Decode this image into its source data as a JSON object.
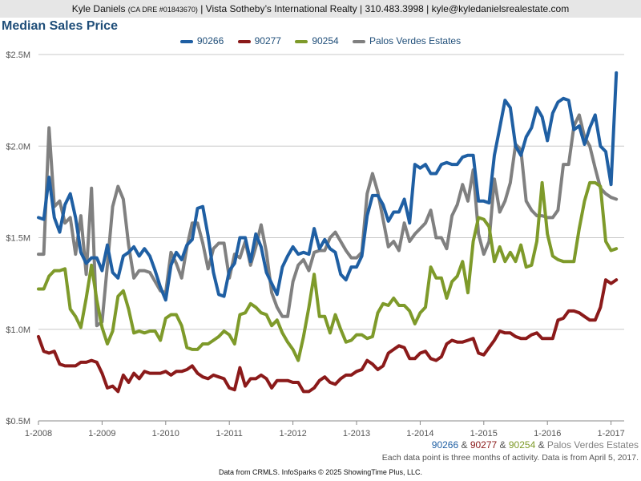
{
  "header": {
    "agent": "Kyle Daniels",
    "license": "(CA DRE #01843670)",
    "rest": "| Vista Sotheby’s International Realty | 310.483.3998 | kyle@kyledanielsrealestate.com"
  },
  "colors": {
    "90266": "#1f5fa3",
    "90277": "#8b1a1a",
    "90254": "#7e9a2a",
    "pve": "#808080"
  },
  "footer": {
    "zip_line": {
      "s1": "90266",
      "amp1": " & ",
      "s2": "90277",
      "amp2": " & ",
      "s3": "90254",
      "amp3": " & ",
      "s4": "Palos Verdes Estates"
    },
    "note": "Each data point is three months of activity. Data is from April 5, 2017.",
    "source": "Data from CRMLS. InfoSparks © 2025 ShowingTime Plus, LLC."
  },
  "chart_data": {
    "type": "line",
    "title": "Median Sales Price",
    "x_ticks": [
      "1-2008",
      "1-2009",
      "1-2010",
      "1-2011",
      "1-2012",
      "1-2013",
      "1-2014",
      "1-2015",
      "1-2016",
      "1-2017"
    ],
    "y_ticks": [
      "$0.5M",
      "$1.0M",
      "$1.5M",
      "$2.0M",
      "$2.5M"
    ],
    "ylim": [
      0.5,
      2.5
    ],
    "x_range": [
      "2008-01",
      "2017-03"
    ],
    "grid": true,
    "legend_position": "top-center",
    "series": [
      {
        "name": "90266",
        "color": "#1f5fa3",
        "values": [
          1.61,
          1.6,
          1.83,
          1.61,
          1.53,
          1.68,
          1.74,
          1.61,
          1.42,
          1.36,
          1.39,
          1.39,
          1.32,
          1.46,
          1.31,
          1.28,
          1.4,
          1.42,
          1.45,
          1.4,
          1.44,
          1.4,
          1.32,
          1.23,
          1.16,
          1.35,
          1.42,
          1.38,
          1.46,
          1.49,
          1.66,
          1.67,
          1.51,
          1.31,
          1.19,
          1.18,
          1.32,
          1.36,
          1.5,
          1.5,
          1.37,
          1.52,
          1.45,
          1.31,
          1.25,
          1.19,
          1.34,
          1.4,
          1.45,
          1.41,
          1.42,
          1.41,
          1.55,
          1.44,
          1.49,
          1.44,
          1.42,
          1.3,
          1.27,
          1.34,
          1.34,
          1.4,
          1.62,
          1.73,
          1.73,
          1.68,
          1.59,
          1.64,
          1.64,
          1.71,
          1.58,
          1.9,
          1.88,
          1.9,
          1.85,
          1.85,
          1.9,
          1.91,
          1.9,
          1.9,
          1.94,
          1.95,
          1.95,
          1.7,
          1.7,
          1.69,
          1.95,
          2.1,
          2.25,
          2.21,
          2.0,
          1.95,
          2.05,
          2.1,
          2.21,
          2.16,
          2.03,
          2.18,
          2.24,
          2.26,
          2.25,
          2.09,
          2.11,
          2.01,
          2.1,
          2.17,
          2.0,
          1.97,
          1.79,
          2.4
        ]
      },
      {
        "name": "90277",
        "color": "#8b1a1a",
        "values": [
          0.96,
          0.88,
          0.87,
          0.88,
          0.81,
          0.8,
          0.8,
          0.8,
          0.82,
          0.82,
          0.83,
          0.82,
          0.76,
          0.68,
          0.69,
          0.66,
          0.75,
          0.71,
          0.76,
          0.73,
          0.77,
          0.76,
          0.76,
          0.76,
          0.77,
          0.75,
          0.77,
          0.77,
          0.78,
          0.8,
          0.76,
          0.74,
          0.73,
          0.75,
          0.74,
          0.73,
          0.68,
          0.67,
          0.79,
          0.69,
          0.73,
          0.73,
          0.75,
          0.73,
          0.68,
          0.72,
          0.72,
          0.72,
          0.71,
          0.71,
          0.66,
          0.66,
          0.68,
          0.72,
          0.74,
          0.71,
          0.7,
          0.73,
          0.75,
          0.75,
          0.77,
          0.78,
          0.83,
          0.81,
          0.78,
          0.8,
          0.87,
          0.89,
          0.91,
          0.9,
          0.84,
          0.84,
          0.87,
          0.88,
          0.84,
          0.83,
          0.85,
          0.92,
          0.94,
          0.93,
          0.93,
          0.94,
          0.95,
          0.87,
          0.86,
          0.9,
          0.94,
          0.99,
          0.98,
          0.98,
          0.96,
          0.95,
          0.95,
          0.97,
          0.98,
          0.95,
          0.95,
          0.95,
          1.05,
          1.06,
          1.1,
          1.1,
          1.09,
          1.07,
          1.05,
          1.05,
          1.12,
          1.27,
          1.25,
          1.27
        ]
      },
      {
        "name": "90254",
        "color": "#7e9a2a",
        "values": [
          1.22,
          1.22,
          1.29,
          1.32,
          1.32,
          1.33,
          1.11,
          1.07,
          1.01,
          1.17,
          1.35,
          1.16,
          1.01,
          0.92,
          0.99,
          1.18,
          1.21,
          1.11,
          0.98,
          0.99,
          0.98,
          0.99,
          0.99,
          0.94,
          1.06,
          1.08,
          1.08,
          1.02,
          0.9,
          0.89,
          0.89,
          0.92,
          0.92,
          0.94,
          0.96,
          0.99,
          0.97,
          0.92,
          1.08,
          1.09,
          1.14,
          1.12,
          1.09,
          1.08,
          1.02,
          1.05,
          0.98,
          0.93,
          0.89,
          0.83,
          0.96,
          1.12,
          1.3,
          1.07,
          1.07,
          0.98,
          1.08,
          1.0,
          0.93,
          0.94,
          0.97,
          0.97,
          0.95,
          0.96,
          1.09,
          1.14,
          1.13,
          1.17,
          1.13,
          1.13,
          1.1,
          1.03,
          1.09,
          1.12,
          1.34,
          1.28,
          1.28,
          1.17,
          1.26,
          1.29,
          1.37,
          1.2,
          1.48,
          1.61,
          1.6,
          1.56,
          1.37,
          1.45,
          1.37,
          1.42,
          1.37,
          1.46,
          1.34,
          1.35,
          1.48,
          1.8,
          1.52,
          1.4,
          1.38,
          1.37,
          1.37,
          1.37,
          1.55,
          1.7,
          1.8,
          1.8,
          1.78,
          1.48,
          1.43,
          1.44
        ]
      },
      {
        "name": "Palos Verdes Estates",
        "color": "#808080",
        "values": [
          1.41,
          1.41,
          2.1,
          1.67,
          1.7,
          1.58,
          1.61,
          1.41,
          1.62,
          1.3,
          1.77,
          1.02,
          1.04,
          1.35,
          1.67,
          1.78,
          1.71,
          1.46,
          1.28,
          1.32,
          1.32,
          1.31,
          1.26,
          1.21,
          1.2,
          1.42,
          1.36,
          1.28,
          1.45,
          1.58,
          1.58,
          1.47,
          1.33,
          1.44,
          1.47,
          1.47,
          1.28,
          1.41,
          1.39,
          1.48,
          1.35,
          1.45,
          1.57,
          1.42,
          1.2,
          1.12,
          1.07,
          1.07,
          1.26,
          1.35,
          1.38,
          1.32,
          1.42,
          1.43,
          1.43,
          1.5,
          1.53,
          1.48,
          1.43,
          1.39,
          1.39,
          1.42,
          1.74,
          1.85,
          1.75,
          1.6,
          1.45,
          1.48,
          1.43,
          1.58,
          1.48,
          1.52,
          1.55,
          1.58,
          1.65,
          1.5,
          1.5,
          1.44,
          1.62,
          1.68,
          1.79,
          1.7,
          1.87,
          1.52,
          1.41,
          1.48,
          1.82,
          1.64,
          1.7,
          1.8,
          2.01,
          1.98,
          1.7,
          1.65,
          1.62,
          1.62,
          1.61,
          1.61,
          1.65,
          1.9,
          1.9,
          2.11,
          2.17,
          2.05,
          2.0,
          1.88,
          1.77,
          1.74,
          1.72,
          1.71
        ]
      }
    ]
  }
}
